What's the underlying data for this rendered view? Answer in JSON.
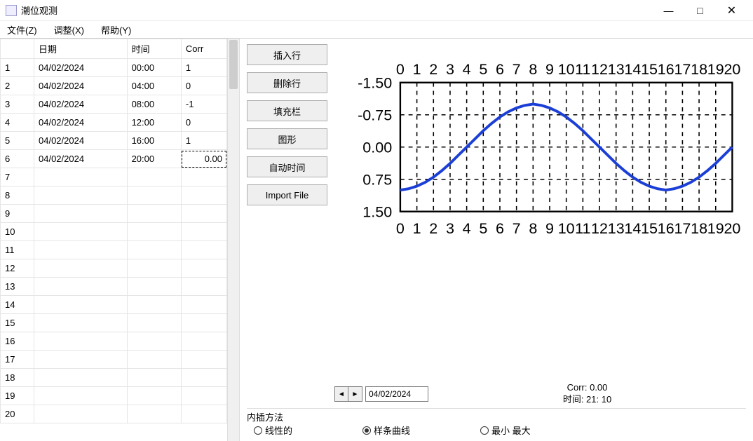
{
  "window": {
    "title": "潮位观测",
    "min": "—",
    "max": "□",
    "close": "✕"
  },
  "menu": {
    "file": "文件(Z)",
    "adjust": "调整(X)",
    "help": "帮助(Y)"
  },
  "table": {
    "headers": {
      "row": "",
      "date": "日期",
      "time": "时间",
      "corr": "Corr"
    },
    "rows": [
      {
        "n": "1",
        "date": "04/02/2024",
        "time": "00:00",
        "corr": "1"
      },
      {
        "n": "2",
        "date": "04/02/2024",
        "time": "04:00",
        "corr": "0"
      },
      {
        "n": "3",
        "date": "04/02/2024",
        "time": "08:00",
        "corr": "-1"
      },
      {
        "n": "4",
        "date": "04/02/2024",
        "time": "12:00",
        "corr": "0"
      },
      {
        "n": "5",
        "date": "04/02/2024",
        "time": "16:00",
        "corr": "1"
      },
      {
        "n": "6",
        "date": "04/02/2024",
        "time": "20:00",
        "corr": "0.00",
        "editing": true
      },
      {
        "n": "7"
      },
      {
        "n": "8"
      },
      {
        "n": "9"
      },
      {
        "n": "10"
      },
      {
        "n": "11"
      },
      {
        "n": "12"
      },
      {
        "n": "13"
      },
      {
        "n": "14"
      },
      {
        "n": "15"
      },
      {
        "n": "16"
      },
      {
        "n": "17"
      },
      {
        "n": "18"
      },
      {
        "n": "19"
      },
      {
        "n": "20"
      }
    ]
  },
  "buttons": {
    "insert": "插入行",
    "delete": "删除行",
    "fill": "填充栏",
    "graph": "图形",
    "autotime": "自动时间",
    "import": "Import File"
  },
  "chart": {
    "type": "line",
    "xlim": [
      0,
      20
    ],
    "ylim": [
      -1.5,
      1.5
    ],
    "xticks": [
      0,
      1,
      2,
      3,
      4,
      5,
      6,
      7,
      8,
      9,
      10,
      11,
      12,
      13,
      14,
      15,
      16,
      17,
      18,
      19,
      20
    ],
    "yticks": [
      -1.5,
      -0.75,
      0.0,
      0.75,
      1.5
    ],
    "ytick_labels": [
      "-1.50",
      "-0.75",
      "0.00",
      "0.75",
      "1.50"
    ],
    "series_color": "#1b3fd6",
    "line_width": 2,
    "grid_color": "#000000",
    "grid_dash": "3,3",
    "border_color": "#000000",
    "background_color": "#ffffff",
    "label_fontsize": 11,
    "data": [
      [
        0,
        1.0
      ],
      [
        0.5,
        0.97
      ],
      [
        1,
        0.91
      ],
      [
        1.5,
        0.82
      ],
      [
        2,
        0.7
      ],
      [
        2.5,
        0.55
      ],
      [
        3,
        0.38
      ],
      [
        3.5,
        0.19
      ],
      [
        4,
        0.0
      ],
      [
        4.5,
        -0.19
      ],
      [
        5,
        -0.38
      ],
      [
        5.5,
        -0.55
      ],
      [
        6,
        -0.7
      ],
      [
        6.5,
        -0.82
      ],
      [
        7,
        -0.91
      ],
      [
        7.5,
        -0.97
      ],
      [
        8,
        -1.0
      ],
      [
        8.5,
        -0.97
      ],
      [
        9,
        -0.91
      ],
      [
        9.5,
        -0.82
      ],
      [
        10,
        -0.7
      ],
      [
        10.5,
        -0.55
      ],
      [
        11,
        -0.38
      ],
      [
        11.5,
        -0.19
      ],
      [
        12,
        0.0
      ],
      [
        12.5,
        0.19
      ],
      [
        13,
        0.38
      ],
      [
        13.5,
        0.55
      ],
      [
        14,
        0.7
      ],
      [
        14.5,
        0.82
      ],
      [
        15,
        0.91
      ],
      [
        15.5,
        0.97
      ],
      [
        16,
        1.0
      ],
      [
        16.5,
        0.97
      ],
      [
        17,
        0.91
      ],
      [
        17.5,
        0.82
      ],
      [
        18,
        0.7
      ],
      [
        18.5,
        0.55
      ],
      [
        19,
        0.38
      ],
      [
        19.5,
        0.19
      ],
      [
        20,
        0.0
      ]
    ]
  },
  "stepper": {
    "prev": "◄",
    "next": "►",
    "date": "04/02/2024"
  },
  "readout": {
    "corr": "Corr: 0.00",
    "time": "时间: 21: 10"
  },
  "interp": {
    "label": "内插方法",
    "linear": "线性的",
    "spline": "样条曲线",
    "minmax": "最小 最大",
    "selected": "spline"
  }
}
